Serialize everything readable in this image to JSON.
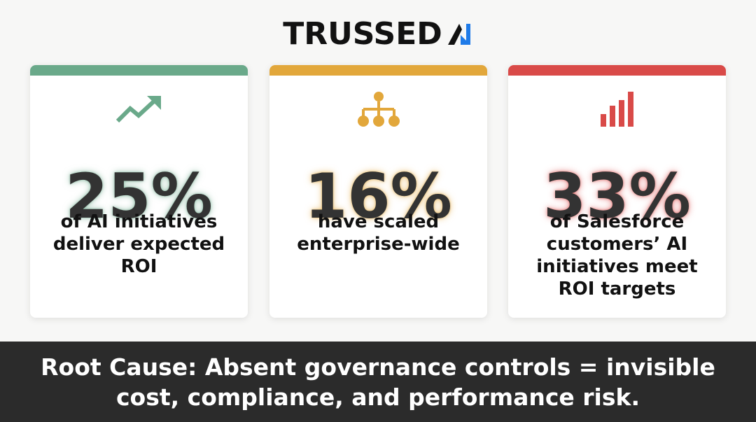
{
  "brand": {
    "name": "TRUSSED",
    "logo_mark_color": "#1f7be8"
  },
  "cards": [
    {
      "icon": "trending-up-icon",
      "accent": "#6aa98a",
      "value": "25%",
      "caption": "of AI initiatives\ndeliver expected\nROI"
    },
    {
      "icon": "hierarchy-icon",
      "accent": "#e2a73b",
      "value": "16%",
      "caption": "have scaled\nenterprise-wide"
    },
    {
      "icon": "bar-chart-icon",
      "accent": "#d94a48",
      "value": "33%",
      "caption": "of Salesforce\ncustomers’ AI\ninitiatives meet\nROI targets"
    }
  ],
  "footer": {
    "text": "Root Cause: Absent governance controls = invisible\ncost, compliance, and performance risk."
  }
}
